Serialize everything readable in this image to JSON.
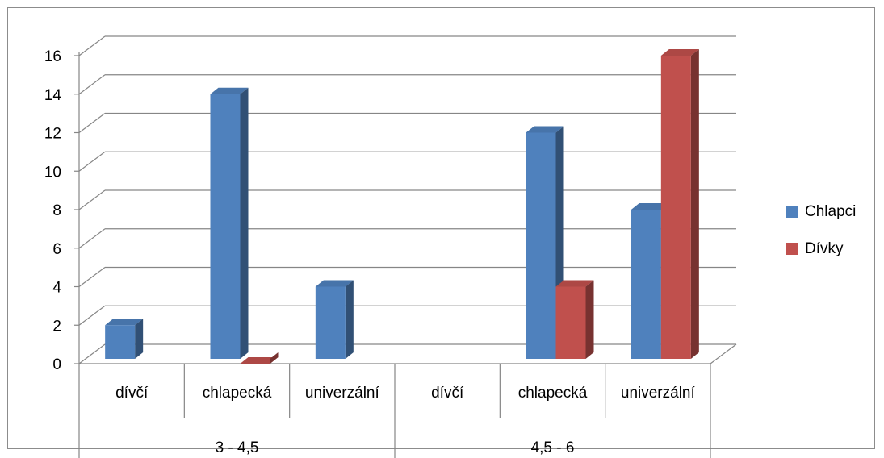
{
  "chart_data": {
    "type": "bar",
    "title": "",
    "xlabel": "",
    "ylabel": "",
    "ylim": [
      0,
      16
    ],
    "yticks": [
      0,
      2,
      4,
      6,
      8,
      10,
      12,
      14,
      16
    ],
    "ytick_labels": [
      "0",
      "2",
      "4",
      "6",
      "8",
      "10",
      "12",
      "14",
      "16"
    ],
    "groups": [
      {
        "label": "3 - 4,5",
        "categories": [
          "dívčí",
          "chlapecká",
          "univerzální"
        ]
      },
      {
        "label": "4,5 - 6",
        "categories": [
          "dívčí",
          "chlapecká",
          "univerzální"
        ]
      }
    ],
    "series": [
      {
        "name": "Chlapci",
        "color": "#4f81bd",
        "values": [
          2,
          14,
          4,
          null,
          12,
          8
        ]
      },
      {
        "name": "Dívky",
        "color": "#c0504d",
        "values": [
          null,
          0,
          null,
          null,
          4,
          16
        ]
      }
    ],
    "grid": true,
    "legend_position": "right",
    "style": "3d-clustered-column"
  }
}
